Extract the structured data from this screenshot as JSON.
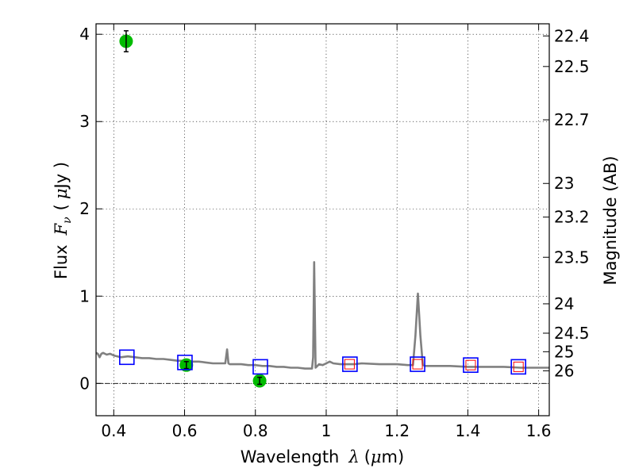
{
  "chart_data": {
    "type": "scatter",
    "xlabel": "Wavelength",
    "xlabel_symbol": "λ",
    "xlabel_unit_open": "(",
    "xlabel_unit_mu": "μ",
    "xlabel_unit_rest": "m)",
    "ylabel": "Flux",
    "ylabel_symbol": "F",
    "ylabel_subscript": "ν",
    "ylabel_unit_open": "(",
    "ylabel_unit_mu": "μ",
    "ylabel_unit_rest": "Jy )",
    "y2label": "Magnitude (AB)",
    "xlim": [
      0.35,
      1.63
    ],
    "ylim": [
      -0.37,
      4.12
    ],
    "xticks": [
      0.4,
      0.6,
      0.8,
      1.0,
      1.2,
      1.4,
      1.6
    ],
    "xtick_labels": [
      "0.4",
      "0.6",
      "0.8",
      "1",
      "1.2",
      "1.4",
      "1.6"
    ],
    "yticks": [
      0,
      1,
      2,
      3,
      4
    ],
    "ytick_labels": [
      "0",
      "1",
      "2",
      "3",
      "4"
    ],
    "mag_ticks": [
      22.4,
      22.5,
      22.7,
      23.0,
      23.2,
      23.5,
      24.0,
      24.5,
      25.0,
      26.0
    ],
    "mag_tick_labels": [
      "22.4",
      "22.5",
      "22.7",
      "23",
      "23.2",
      "23.5",
      "24",
      "24.5",
      "25",
      "26"
    ],
    "grid": true,
    "zero_line": 0,
    "series": [
      {
        "name": "spectrum",
        "kind": "line",
        "color": "#808080",
        "x": [
          0.35,
          0.355,
          0.36,
          0.365,
          0.37,
          0.38,
          0.39,
          0.4,
          0.42,
          0.44,
          0.46,
          0.48,
          0.5,
          0.52,
          0.54,
          0.56,
          0.58,
          0.6,
          0.62,
          0.64,
          0.66,
          0.68,
          0.7,
          0.715,
          0.72,
          0.724,
          0.728,
          0.74,
          0.76,
          0.78,
          0.8,
          0.82,
          0.84,
          0.86,
          0.88,
          0.9,
          0.92,
          0.94,
          0.955,
          0.96,
          0.963,
          0.966,
          0.97,
          0.975,
          0.98,
          0.99,
          1.0,
          1.01,
          1.02,
          1.04,
          1.06,
          1.08,
          1.1,
          1.15,
          1.2,
          1.23,
          1.245,
          1.252,
          1.259,
          1.266,
          1.273,
          1.28,
          1.3,
          1.35,
          1.4,
          1.45,
          1.5,
          1.55,
          1.6,
          1.63
        ],
        "y": [
          0.35,
          0.34,
          0.3,
          0.34,
          0.35,
          0.33,
          0.34,
          0.32,
          0.3,
          0.31,
          0.3,
          0.29,
          0.29,
          0.28,
          0.28,
          0.27,
          0.26,
          0.26,
          0.25,
          0.25,
          0.24,
          0.23,
          0.23,
          0.23,
          0.39,
          0.23,
          0.22,
          0.22,
          0.22,
          0.21,
          0.21,
          0.2,
          0.2,
          0.19,
          0.19,
          0.18,
          0.18,
          0.17,
          0.17,
          0.17,
          0.3,
          1.39,
          0.18,
          0.2,
          0.22,
          0.21,
          0.23,
          0.25,
          0.23,
          0.22,
          0.22,
          0.22,
          0.23,
          0.22,
          0.22,
          0.21,
          0.21,
          0.55,
          1.03,
          0.55,
          0.21,
          0.2,
          0.2,
          0.2,
          0.19,
          0.19,
          0.19,
          0.18,
          0.18,
          0.18
        ]
      },
      {
        "name": "photometry",
        "kind": "errorbar",
        "color": "#00bb00",
        "x": [
          0.435,
          0.605,
          0.812
        ],
        "y": [
          3.92,
          0.21,
          0.03
        ],
        "yerr": [
          0.12,
          0.04,
          0.04
        ]
      },
      {
        "name": "model-blue",
        "kind": "open-square",
        "color": "#0000ff",
        "x": [
          0.437,
          0.601,
          0.814,
          1.067,
          1.258,
          1.408,
          1.543
        ],
        "y": [
          0.3,
          0.24,
          0.19,
          0.22,
          0.22,
          0.21,
          0.19
        ]
      },
      {
        "name": "model-red",
        "kind": "open-square",
        "color": "#ff0000",
        "x": [
          1.066,
          1.258,
          1.408,
          1.543
        ],
        "y": [
          0.22,
          0.22,
          0.21,
          0.19
        ]
      }
    ]
  }
}
